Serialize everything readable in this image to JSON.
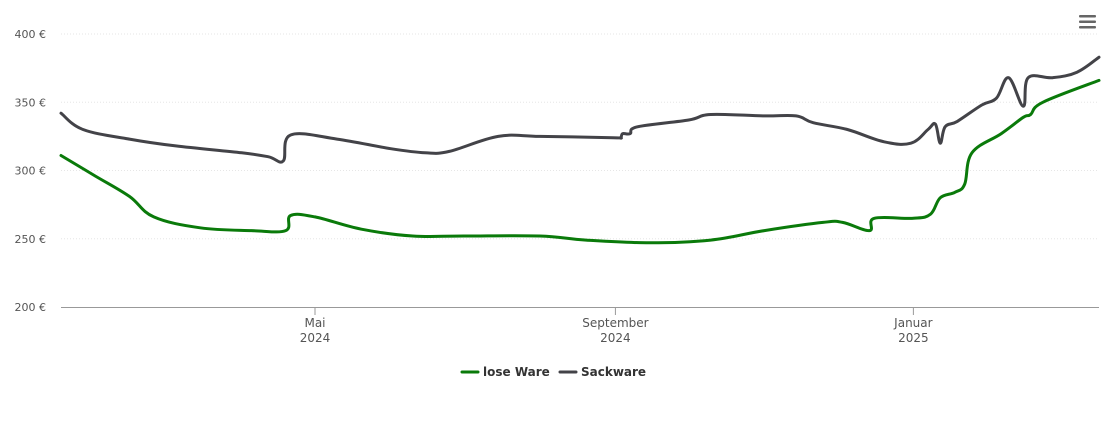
{
  "chart_data": {
    "type": "line",
    "title": "",
    "xlabel": "",
    "ylabel": "",
    "ylim": [
      200,
      400
    ],
    "xlim": [
      "2024-01-18",
      "2025-03-18"
    ],
    "y_ticks": [
      {
        "value": 200,
        "label": "200 €"
      },
      {
        "value": 250,
        "label": "250 €"
      },
      {
        "value": 300,
        "label": "300 €"
      },
      {
        "value": 350,
        "label": "350 €"
      },
      {
        "value": 400,
        "label": "400 €"
      }
    ],
    "x_ticks": [
      {
        "date": "2024-05-01",
        "month": "Mai",
        "year": "2024"
      },
      {
        "date": "2024-09-01",
        "month": "September",
        "year": "2024"
      },
      {
        "date": "2025-01-01",
        "month": "Januar",
        "year": "2025"
      }
    ],
    "grid": true,
    "legend_position": "bottom-center",
    "series": [
      {
        "name": "lose Ware",
        "color": "#0a7a0a",
        "points": [
          [
            "2024-01-18",
            311
          ],
          [
            "2024-02-01",
            296
          ],
          [
            "2024-02-15",
            281
          ],
          [
            "2024-02-25",
            266
          ],
          [
            "2024-03-15",
            258
          ],
          [
            "2024-04-05",
            256
          ],
          [
            "2024-04-19",
            256
          ],
          [
            "2024-04-21",
            267
          ],
          [
            "2024-05-01",
            266
          ],
          [
            "2024-05-20",
            257
          ],
          [
            "2024-06-10",
            252
          ],
          [
            "2024-07-01",
            252
          ],
          [
            "2024-08-01",
            252
          ],
          [
            "2024-08-20",
            249
          ],
          [
            "2024-09-15",
            247
          ],
          [
            "2024-10-10",
            249
          ],
          [
            "2024-11-01",
            256
          ],
          [
            "2024-11-25",
            262
          ],
          [
            "2024-12-03",
            262
          ],
          [
            "2024-12-14",
            256
          ],
          [
            "2024-12-16",
            265
          ],
          [
            "2025-01-01",
            265
          ],
          [
            "2025-01-08",
            268
          ],
          [
            "2025-01-12",
            280
          ],
          [
            "2025-01-18",
            284
          ],
          [
            "2025-01-22",
            290
          ],
          [
            "2025-01-25",
            313
          ],
          [
            "2025-02-06",
            327
          ],
          [
            "2025-02-15",
            339
          ],
          [
            "2025-02-18",
            341
          ],
          [
            "2025-02-23",
            350
          ],
          [
            "2025-03-18",
            366
          ]
        ]
      },
      {
        "name": "Sackware",
        "color": "#434348",
        "points": [
          [
            "2024-01-18",
            342
          ],
          [
            "2024-01-27",
            330
          ],
          [
            "2024-02-15",
            323
          ],
          [
            "2024-03-05",
            318
          ],
          [
            "2024-04-01",
            313
          ],
          [
            "2024-04-12",
            310
          ],
          [
            "2024-04-18",
            307
          ],
          [
            "2024-04-21",
            326
          ],
          [
            "2024-05-10",
            323
          ],
          [
            "2024-06-01",
            316
          ],
          [
            "2024-06-15",
            313
          ],
          [
            "2024-06-25",
            314
          ],
          [
            "2024-07-15",
            325
          ],
          [
            "2024-08-01",
            325
          ],
          [
            "2024-08-31",
            324
          ],
          [
            "2024-09-03",
            324
          ],
          [
            "2024-09-04",
            327
          ],
          [
            "2024-09-07",
            327
          ],
          [
            "2024-09-10",
            332
          ],
          [
            "2024-10-01",
            337
          ],
          [
            "2024-10-10",
            341
          ],
          [
            "2024-11-01",
            340
          ],
          [
            "2024-11-14",
            340
          ],
          [
            "2024-11-21",
            335
          ],
          [
            "2024-12-05",
            330
          ],
          [
            "2024-12-20",
            321
          ],
          [
            "2024-12-31",
            320
          ],
          [
            "2025-01-07",
            330
          ],
          [
            "2025-01-10",
            334
          ],
          [
            "2025-01-12",
            320
          ],
          [
            "2025-01-14",
            332
          ],
          [
            "2025-01-19",
            336
          ],
          [
            "2025-01-29",
            348
          ],
          [
            "2025-02-04",
            353
          ],
          [
            "2025-02-09",
            368
          ],
          [
            "2025-02-15",
            347
          ],
          [
            "2025-02-17",
            368
          ],
          [
            "2025-02-27",
            368
          ],
          [
            "2025-03-09",
            372
          ],
          [
            "2025-03-18",
            383
          ]
        ]
      }
    ]
  },
  "toolbar": {
    "menu_icon": "hamburger-menu-icon"
  }
}
